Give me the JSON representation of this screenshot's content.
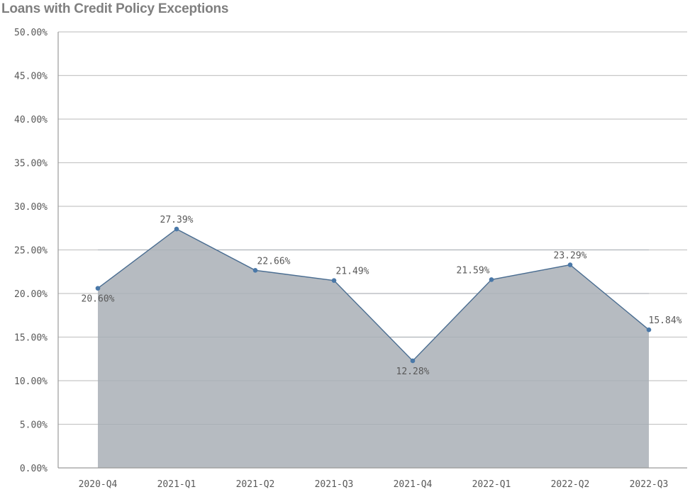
{
  "title": "Loans with Credit Policy Exceptions",
  "colors": {
    "area_fill": "#b6bbc1",
    "line": "#4a6d91",
    "marker": "#4a78a8",
    "grid": "#c8c8c8",
    "axis": "#9a9a9a",
    "title": "#7f7f7f",
    "text": "#595959"
  },
  "chart_data": {
    "type": "area",
    "title": "Loans with Credit Policy Exceptions",
    "xlabel": "",
    "ylabel": "",
    "categories": [
      "2020-Q4",
      "2021-Q1",
      "2021-Q2",
      "2021-Q3",
      "2021-Q4",
      "2022-Q1",
      "2022-Q2",
      "2022-Q3"
    ],
    "values": [
      20.6,
      27.39,
      22.66,
      21.49,
      12.28,
      21.59,
      23.29,
      15.84
    ],
    "data_labels": [
      "20.60%",
      "27.39%",
      "22.66%",
      "21.49%",
      "12.28%",
      "21.59%",
      "23.29%",
      "15.84%"
    ],
    "ylim": [
      0,
      50
    ],
    "yticks": [
      0,
      5,
      10,
      15,
      20,
      25,
      30,
      35,
      40,
      45,
      50
    ],
    "ytick_labels": [
      "0.00%",
      "5.00%",
      "10.00%",
      "15.00%",
      "20.00%",
      "25.00%",
      "30.00%",
      "35.00%",
      "40.00%",
      "45.00%",
      "50.00%"
    ],
    "grid": true,
    "legend": "none",
    "markers": true
  }
}
